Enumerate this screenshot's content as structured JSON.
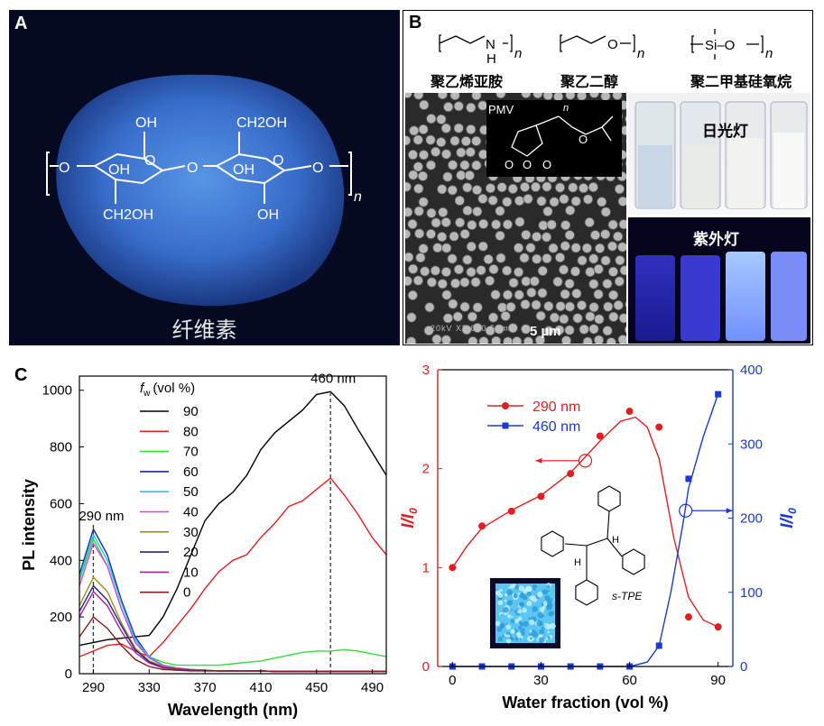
{
  "panel_a": {
    "letter": "A",
    "caption": "纤维素",
    "formula": {
      "oh1": "OH",
      "ch2oh_top": "CH2OH",
      "oh_ring1": "OH",
      "o_ring1": "O",
      "o_ring2": "O",
      "o_bridge": "O",
      "o_left": "O",
      "o_right": "O",
      "oh_ring2": "OH",
      "ch2oh_bottom": "CH2OH",
      "oh_bottom": "OH",
      "n": "n"
    },
    "colors": {
      "background": "#050a22",
      "glow": "#3f7fe0"
    }
  },
  "panel_b": {
    "letter": "B",
    "polymers": [
      {
        "name": "聚乙烯亚胺",
        "heteroatom": "N",
        "h": "H",
        "n": "n"
      },
      {
        "name": "聚乙二醇",
        "heteroatom": "O",
        "n": "n"
      },
      {
        "name": "聚二甲基硅氧烷",
        "heteroatom": "Si–O",
        "n": "n"
      }
    ],
    "pmv_label": "PMV",
    "pmv_n": "n",
    "pmv_o1": "O",
    "pmv_o2": "O",
    "pmv_o3": "O",
    "pmv_o4": "O",
    "sem_scale": "5 µm",
    "sem_info": "20kV    X5,000    5µm",
    "daylight_label": "日光灯",
    "uv_label": "紫外灯"
  },
  "panel_c": {
    "letter": "C",
    "chart_data": [
      {
        "type": "line",
        "xlabel": "Wavelength (nm)",
        "ylabel": "PL intensity",
        "xlim": [
          280,
          500
        ],
        "ylim": [
          0,
          1050
        ],
        "xticks": [
          290,
          330,
          370,
          410,
          450,
          490
        ],
        "yticks": [
          0,
          200,
          400,
          600,
          800,
          1000
        ],
        "legend_title": "f",
        "legend_title_sub": "w",
        "legend_title_unit": "(vol %)",
        "annotations": [
          "290 nm",
          "460 nm"
        ],
        "series": [
          {
            "name": "90",
            "color": "#000000",
            "x": [
              280,
              290,
              300,
              310,
              320,
              330,
              340,
              350,
              360,
              370,
              380,
              390,
              400,
              410,
              420,
              430,
              440,
              450,
              460,
              470,
              480,
              490,
              500
            ],
            "values": [
              100,
              110,
              120,
              125,
              130,
              135,
              200,
              300,
              420,
              540,
              600,
              640,
              700,
              790,
              850,
              890,
              930,
              985,
              995,
              945,
              860,
              780,
              700
            ]
          },
          {
            "name": "80",
            "color": "#e02020",
            "x": [
              280,
              290,
              300,
              310,
              320,
              330,
              340,
              350,
              360,
              370,
              380,
              390,
              400,
              410,
              420,
              430,
              440,
              450,
              460,
              470,
              480,
              490,
              500
            ],
            "values": [
              60,
              80,
              100,
              105,
              80,
              60,
              110,
              170,
              230,
              300,
              360,
              400,
              420,
              480,
              530,
              590,
              610,
              650,
              690,
              630,
              560,
              480,
              420
            ]
          },
          {
            "name": "70",
            "color": "#33dd33",
            "x": [
              280,
              290,
              300,
              310,
              320,
              330,
              340,
              350,
              360,
              370,
              380,
              390,
              400,
              410,
              420,
              430,
              440,
              450,
              460,
              470,
              480,
              490,
              500
            ],
            "values": [
              330,
              475,
              380,
              230,
              110,
              60,
              40,
              30,
              30,
              30,
              30,
              35,
              40,
              45,
              55,
              65,
              75,
              80,
              80,
              85,
              80,
              70,
              60
            ]
          },
          {
            "name": "60",
            "color": "#1a2b9e",
            "x": [
              280,
              290,
              300,
              310,
              320,
              330,
              340,
              350,
              360,
              370,
              380,
              390,
              400,
              410,
              420,
              430,
              440,
              450,
              460,
              470,
              480,
              490,
              500
            ],
            "values": [
              350,
              510,
              420,
              260,
              130,
              60,
              30,
              20,
              15,
              12,
              10,
              10,
              10,
              10,
              8,
              8,
              8,
              8,
              8,
              8,
              8,
              8,
              8
            ]
          },
          {
            "name": "50",
            "color": "#20c8e8",
            "x": [
              280,
              290,
              300,
              310,
              320,
              330,
              340,
              350,
              360,
              370,
              380,
              390,
              400,
              410,
              420,
              430,
              440,
              450,
              460,
              470,
              480,
              490,
              500
            ],
            "values": [
              340,
              490,
              400,
              250,
              120,
              60,
              30,
              20,
              15,
              12,
              10,
              10,
              10,
              10,
              8,
              8,
              8,
              8,
              8,
              8,
              8,
              8,
              8
            ]
          },
          {
            "name": "40",
            "color": "#e040e0",
            "x": [
              280,
              290,
              300,
              310,
              320,
              330,
              340,
              350,
              360,
              370,
              380,
              390,
              400,
              410,
              420,
              430,
              440,
              450,
              460,
              470,
              480,
              490,
              500
            ],
            "values": [
              310,
              460,
              380,
              230,
              110,
              55,
              28,
              20,
              15,
              12,
              10,
              10,
              10,
              10,
              8,
              8,
              8,
              8,
              8,
              8,
              8,
              8,
              8
            ]
          },
          {
            "name": "30",
            "color": "#a09020",
            "x": [
              280,
              290,
              300,
              310,
              320,
              330,
              340,
              350,
              360,
              370,
              380,
              390,
              400,
              410,
              420,
              430,
              440,
              450,
              460,
              470,
              480,
              490,
              500
            ],
            "values": [
              240,
              340,
              290,
              180,
              90,
              45,
              25,
              18,
              14,
              12,
              10,
              10,
              10,
              10,
              8,
              8,
              8,
              8,
              8,
              8,
              8,
              8,
              8
            ]
          },
          {
            "name": "20",
            "color": "#242480",
            "x": [
              280,
              290,
              300,
              310,
              320,
              330,
              340,
              350,
              360,
              370,
              380,
              390,
              400,
              410,
              420,
              430,
              440,
              450,
              460,
              470,
              480,
              490,
              500
            ],
            "values": [
              220,
              310,
              260,
              170,
              85,
              42,
              22,
              16,
              13,
              11,
              10,
              10,
              10,
              10,
              8,
              8,
              8,
              8,
              8,
              8,
              8,
              8,
              8
            ]
          },
          {
            "name": "10",
            "color": "#a020a0",
            "x": [
              280,
              290,
              300,
              310,
              320,
              330,
              340,
              350,
              360,
              370,
              380,
              390,
              400,
              410,
              420,
              430,
              440,
              450,
              460,
              470,
              480,
              490,
              500
            ],
            "values": [
              200,
              290,
              240,
              150,
              75,
              38,
              20,
              15,
              12,
              10,
              10,
              10,
              10,
              10,
              8,
              8,
              8,
              8,
              8,
              8,
              8,
              8,
              8
            ]
          },
          {
            "name": "0",
            "color": "#8b1a1a",
            "x": [
              280,
              290,
              300,
              310,
              320,
              330,
              340,
              350,
              360,
              370,
              380,
              390,
              400,
              410,
              420,
              430,
              440,
              450,
              460,
              470,
              480,
              490,
              500
            ],
            "values": [
              130,
              200,
              160,
              100,
              50,
              25,
              15,
              12,
              10,
              10,
              10,
              10,
              10,
              10,
              8,
              8,
              8,
              8,
              8,
              8,
              8,
              8,
              8
            ]
          }
        ]
      },
      {
        "type": "scatter",
        "xlabel": "Water fraction (vol %)",
        "ylabel_left": "I/I",
        "ylabel_left_sub": "0",
        "ylabel_right": "I/I",
        "ylabel_right_sub": "0",
        "xlim": [
          -5,
          95
        ],
        "ylim_left": [
          0,
          3
        ],
        "ylim_right": [
          0,
          400
        ],
        "xticks": [
          0,
          30,
          60,
          90
        ],
        "yticks_left": [
          0,
          1,
          2,
          3
        ],
        "yticks_right": [
          0,
          100,
          200,
          300,
          400
        ],
        "compound_label": "s-TPE",
        "compound_h": "H",
        "series": [
          {
            "name": "290 nm",
            "color": "#e02020",
            "marker": "circle",
            "axis": "left",
            "x": [
              0,
              10,
              20,
              30,
              40,
              50,
              60,
              70,
              80,
              90
            ],
            "values": [
              1.0,
              1.42,
              1.57,
              1.72,
              1.95,
              2.33,
              2.58,
              2.42,
              0.5,
              0.4
            ]
          },
          {
            "name": "460 nm",
            "color": "#1a3ad0",
            "marker": "square",
            "axis": "right",
            "x": [
              0,
              10,
              20,
              30,
              40,
              50,
              60,
              70,
              80,
              90
            ],
            "values": [
              0,
              0,
              0,
              0,
              0,
              0,
              0,
              28,
              253,
              367
            ]
          }
        ]
      }
    ]
  }
}
